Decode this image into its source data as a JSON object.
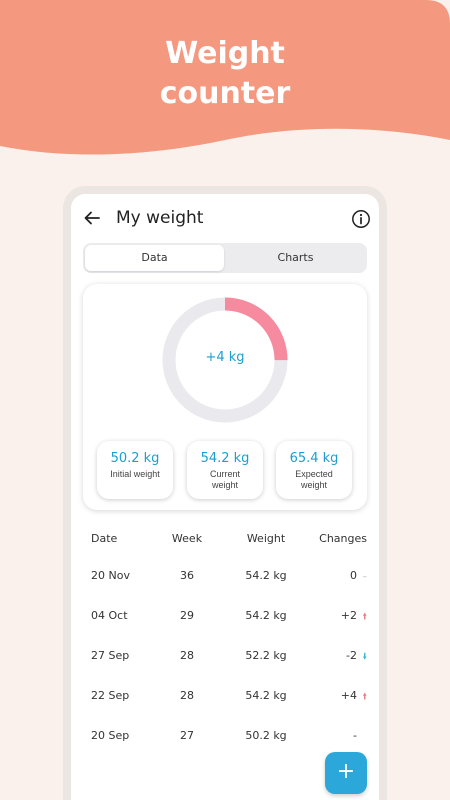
{
  "banner": {
    "title_line1": "Weight",
    "title_line2": "counter",
    "color": "#f59880"
  },
  "app_bar": {
    "title": "My weight",
    "back_icon": "arrow-left-icon",
    "info_icon": "info-icon"
  },
  "tabs": [
    {
      "label": "Data",
      "active": true
    },
    {
      "label": "Charts",
      "active": false
    }
  ],
  "summary": {
    "change_label": "+4 kg",
    "progress_fraction": 0.25,
    "ring_progress_color": "#f68b9f",
    "ring_track_color": "#e9e9ee",
    "stats": [
      {
        "value": "50.2 kg",
        "label": "Initial weight"
      },
      {
        "value": "54.2 kg",
        "label": "Current weight"
      },
      {
        "value": "65.4 kg",
        "label": "Expected weight"
      }
    ]
  },
  "table": {
    "headers": [
      "Date",
      "Week",
      "Weight",
      "Changes"
    ],
    "rows": [
      {
        "date": "20 Nov",
        "week": "36",
        "weight": "54.2 kg",
        "change": "0",
        "trend": "flat"
      },
      {
        "date": "04 Oct",
        "week": "29",
        "weight": "54.2 kg",
        "change": "+2",
        "trend": "up"
      },
      {
        "date": "27 Sep",
        "week": "28",
        "weight": "52.2 kg",
        "change": "-2",
        "trend": "down"
      },
      {
        "date": "22 Sep",
        "week": "28",
        "weight": "54.2 kg",
        "change": "+4",
        "trend": "up"
      },
      {
        "date": "20 Sep",
        "week": "27",
        "weight": "50.2 kg",
        "change": "-",
        "trend": "none"
      }
    ]
  },
  "fab": {
    "label": "+",
    "icon": "plus-icon"
  }
}
